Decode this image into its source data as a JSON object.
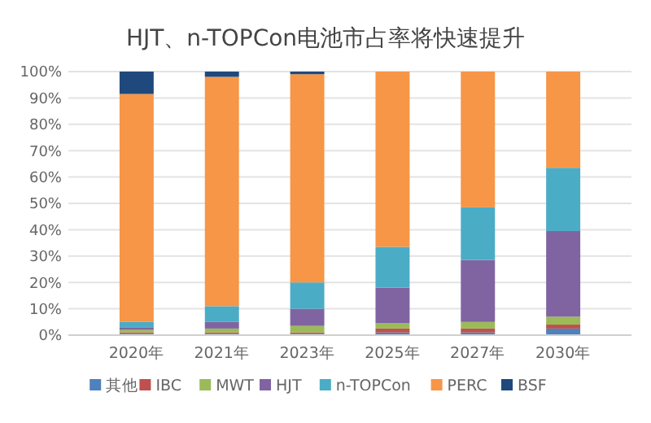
{
  "chart_data": {
    "type": "bar",
    "stacked": true,
    "title": "HJT、n-TOPCon电池市占率将快速提升",
    "categories": [
      "2020年",
      "2021年",
      "2023年",
      "2025年",
      "2027年",
      "2030年"
    ],
    "series": [
      {
        "name": "其他",
        "color": "#4f81bd",
        "values": [
          0.5,
          0.5,
          0.5,
          1,
          1,
          2.5
        ]
      },
      {
        "name": "IBC",
        "color": "#c0504d",
        "values": [
          0.5,
          0.5,
          0.5,
          1.5,
          1.5,
          1.5
        ]
      },
      {
        "name": "MWT",
        "color": "#9bbb59",
        "values": [
          1,
          1.5,
          2.5,
          2,
          2.5,
          3
        ]
      },
      {
        "name": "HJT",
        "color": "#8064a2",
        "values": [
          1,
          2.5,
          6.5,
          13.5,
          23.5,
          32.5
        ]
      },
      {
        "name": "n-TOPCon",
        "color": "#4bacc6",
        "values": [
          2,
          6,
          10,
          15.5,
          20,
          24
        ]
      },
      {
        "name": "PERC",
        "color": "#f79646",
        "values": [
          86.5,
          87,
          79,
          66.5,
          51.5,
          36.5
        ]
      },
      {
        "name": "BSF",
        "color": "#1f497d",
        "values": [
          8.5,
          2,
          1,
          0,
          0,
          0
        ]
      }
    ],
    "ylim": [
      0,
      100
    ],
    "yticks": [
      {
        "value": 0,
        "label": "0%"
      },
      {
        "value": 10,
        "label": "10%"
      },
      {
        "value": 20,
        "label": "20%"
      },
      {
        "value": 30,
        "label": "30%"
      },
      {
        "value": 40,
        "label": "40%"
      },
      {
        "value": 50,
        "label": "50%"
      },
      {
        "value": 60,
        "label": "60%"
      },
      {
        "value": 70,
        "label": "70%"
      },
      {
        "value": 80,
        "label": "80%"
      },
      {
        "value": 90,
        "label": "90%"
      },
      {
        "value": 100,
        "label": "100%"
      }
    ],
    "grid": "y",
    "legend": "bottom"
  }
}
